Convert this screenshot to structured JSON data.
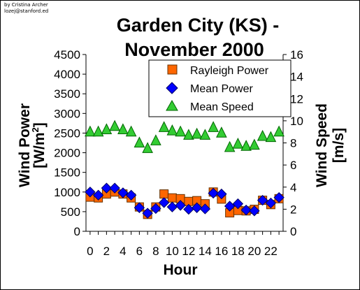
{
  "credit": {
    "line1": "by Cristina Archer",
    "line2": "lozej@stanford.ed"
  },
  "chart_data": {
    "type": "scatter",
    "title_line1": "Garden City (KS) -",
    "title_line2": "November 2000",
    "xlabel": "Hour",
    "ylabel_left": "Wind Power [W/m2]",
    "ylabel_left_main": "Wind Power",
    "ylabel_left_unit": "[W/m",
    "ylabel_left_sup": "2",
    "ylabel_left_close": "]",
    "ylabel_right": "Wind Speed [m/s]",
    "ylabel_right_main": "Wind Speed",
    "ylabel_right_unit": "[m/s]",
    "xlim": [
      -0.5,
      23.5
    ],
    "ylim_left": [
      0,
      4500
    ],
    "ylim_right": [
      0,
      16
    ],
    "x_ticks": [
      0,
      2,
      4,
      6,
      8,
      10,
      12,
      14,
      16,
      18,
      20,
      22
    ],
    "y_left_ticks": [
      0,
      500,
      1000,
      1500,
      2000,
      2500,
      3000,
      3500,
      4000,
      4500
    ],
    "y_right_ticks": [
      0,
      2,
      4,
      6,
      8,
      10,
      12,
      14,
      16
    ],
    "legend_position": "top-right",
    "x": [
      0,
      1,
      2,
      3,
      4,
      5,
      6,
      7,
      8,
      9,
      10,
      11,
      12,
      13,
      14,
      15,
      16,
      17,
      18,
      19,
      20,
      21,
      22,
      23
    ],
    "series": [
      {
        "name": "Rayleigh Power",
        "axis": "left",
        "marker": "square",
        "color": "#ff6600",
        "values": [
          870,
          850,
          950,
          1000,
          950,
          850,
          620,
          430,
          620,
          950,
          850,
          830,
          760,
          780,
          700,
          1000,
          820,
          470,
          530,
          520,
          560,
          790,
          680,
          830
        ]
      },
      {
        "name": "Mean Power",
        "axis": "left",
        "marker": "diamond",
        "color": "#0000ff",
        "values": [
          1000,
          920,
          1100,
          1100,
          980,
          920,
          600,
          460,
          580,
          730,
          620,
          660,
          560,
          600,
          570,
          970,
          950,
          640,
          700,
          540,
          520,
          790,
          720,
          860
        ]
      },
      {
        "name": "Mean Speed",
        "axis": "right",
        "marker": "triangle",
        "color": "#33cc33",
        "values": [
          9.0,
          9.0,
          9.2,
          9.5,
          9.2,
          9.0,
          8.0,
          7.5,
          8.2,
          9.4,
          9.1,
          9.0,
          8.7,
          8.8,
          8.7,
          9.4,
          8.9,
          7.6,
          7.9,
          7.7,
          7.8,
          8.6,
          8.5,
          9.0
        ]
      }
    ]
  },
  "colors": {
    "rayleigh": "#ff6600",
    "mean_power": "#0000ff",
    "mean_speed": "#33cc33",
    "axis": "#000000"
  }
}
